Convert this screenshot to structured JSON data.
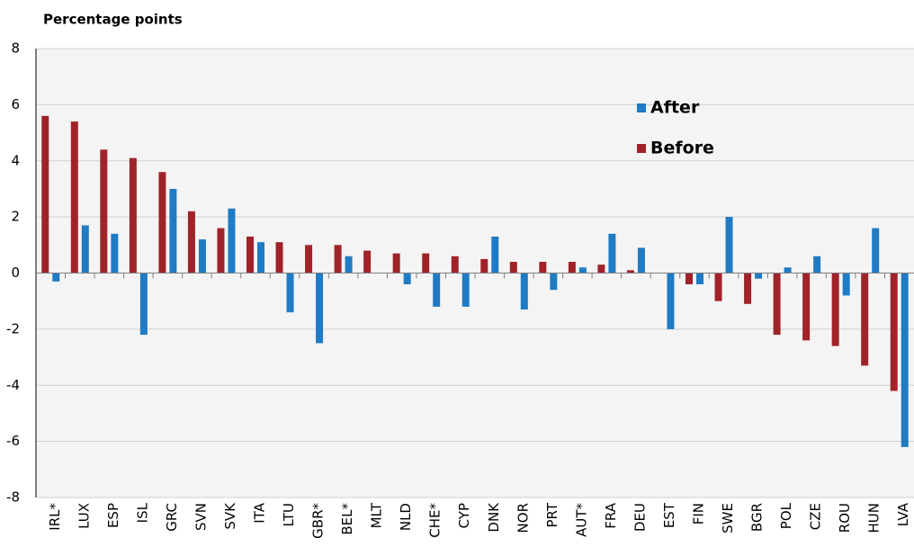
{
  "chart_data": {
    "type": "bar",
    "title": "Percentage points",
    "categories": [
      "IRL*",
      "LUX",
      "ESP",
      "ISL",
      "GRC",
      "SVN",
      "SVK",
      "ITA",
      "LTU",
      "GBR*",
      "BEL*",
      "MLT",
      "NLD",
      "CHE*",
      "CYP",
      "DNK",
      "NOR",
      "PRT",
      "AUT*",
      "FRA",
      "DEU",
      "EST",
      "FIN",
      "SWE",
      "BGR",
      "POL",
      "CZE",
      "ROU",
      "HUN",
      "LVA"
    ],
    "series": [
      {
        "name": "After",
        "color": "#1f7bc4",
        "values": [
          -0.3,
          1.7,
          1.4,
          -2.2,
          3.0,
          1.2,
          2.3,
          1.1,
          -1.4,
          -2.5,
          0.6,
          0,
          -0.4,
          -1.2,
          -1.2,
          1.3,
          -1.3,
          -0.6,
          0.2,
          1.4,
          0.9,
          -2.0,
          -0.4,
          2.0,
          -0.2,
          0.2,
          0.6,
          -0.8,
          1.6,
          -6.2
        ]
      },
      {
        "name": "Before",
        "color": "#a0232a",
        "values": [
          5.6,
          5.4,
          4.4,
          4.1,
          3.6,
          2.2,
          1.6,
          1.3,
          1.1,
          1.0,
          1.0,
          0.8,
          0.7,
          0.7,
          0.6,
          0.5,
          0.4,
          0.4,
          0.4,
          0.3,
          0.1,
          0,
          -0.4,
          -1.0,
          -1.1,
          -2.2,
          -2.4,
          -2.6,
          -3.3,
          -4.2
        ]
      }
    ],
    "ylim": [
      -8,
      8
    ],
    "yticks": [
      -8,
      -6,
      -4,
      -2,
      0,
      2,
      4,
      6,
      8
    ],
    "grid": true,
    "legend": "top-right"
  }
}
